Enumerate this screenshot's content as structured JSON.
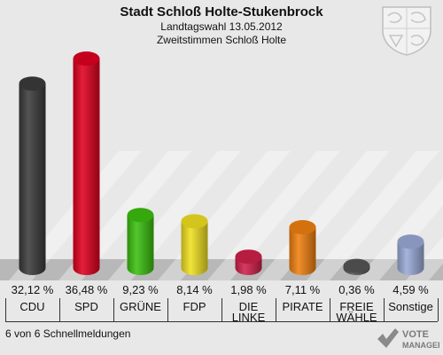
{
  "header": {
    "title": "Stadt Schloß Holte-Stukenbrock",
    "line2": "Landtagswahl 13.05.2012",
    "line3": "Zweitstimmen Schloß Holte"
  },
  "footer": {
    "text": "6 von 6 Schnellmeldungen"
  },
  "logo": {
    "line1": "VOTE",
    "line2": "MANAGER"
  },
  "chart_data": {
    "type": "bar",
    "title": "Stadt Schloß Holte-Stukenbrock",
    "categories": [
      "CDU",
      "SPD",
      "GRÜNE",
      "FDP",
      "DIE LINKE",
      "PIRATE",
      "FREIE WÄHLE",
      "Sonstige"
    ],
    "values": [
      32.12,
      36.48,
      9.23,
      8.14,
      1.98,
      7.11,
      0.36,
      4.59
    ],
    "value_labels": [
      "32,12 %",
      "36,48 %",
      "9,23 %",
      "8,14 %",
      "1,98 %",
      "7,11 %",
      "0,36 %",
      "4,59 %"
    ],
    "colors": [
      "#3b3b3b",
      "#e00020",
      "#3cbf10",
      "#f0e020",
      "#d0204a",
      "#f08010",
      "#555555",
      "#9aaad8"
    ],
    "ylim": [
      0,
      36.48
    ],
    "grid": false,
    "legend": "none"
  }
}
